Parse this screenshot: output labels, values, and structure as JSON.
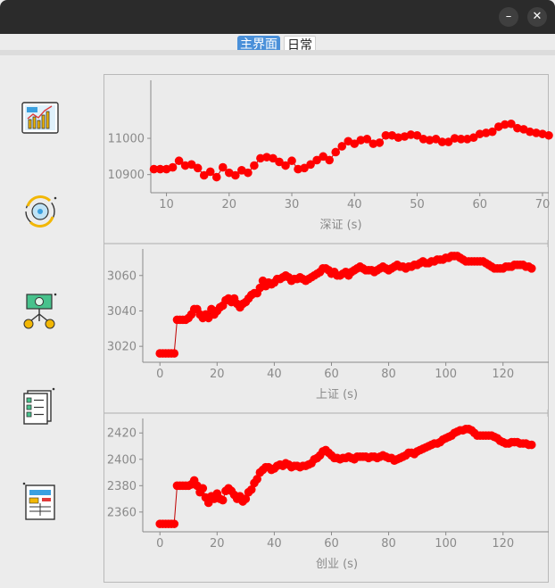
{
  "window": {
    "controls": [
      {
        "name": "minimize-button",
        "glyph": "–"
      },
      {
        "name": "close-button",
        "glyph": "✕"
      }
    ]
  },
  "tabs": [
    {
      "label": "主界面",
      "selected": true
    },
    {
      "label": "日常",
      "selected": false
    }
  ],
  "sidebar": {
    "items": [
      {
        "icon": "stock-chart-icon"
      },
      {
        "icon": "currency-exchange-icon"
      },
      {
        "icon": "money-plant-icon"
      },
      {
        "icon": "checklist-icon"
      },
      {
        "icon": "report-document-icon"
      }
    ]
  },
  "colors": {
    "marker": "#ff0000",
    "line": "#c00000",
    "axis": "#8a8a8a"
  },
  "chart_data": [
    {
      "type": "scatter",
      "xlabel": "深证 (s)",
      "xlim": [
        7.5,
        71
      ],
      "ylim": [
        10850,
        11160
      ],
      "xticks": [
        10,
        20,
        30,
        40,
        50,
        60,
        70
      ],
      "yticks": [
        10900,
        11000
      ],
      "x": [
        8,
        9,
        10,
        11,
        12,
        13,
        14,
        15,
        16,
        17,
        18,
        19,
        20,
        21,
        22,
        23,
        24,
        25,
        26,
        27,
        28,
        29,
        30,
        31,
        32,
        33,
        34,
        35,
        36,
        37,
        38,
        39,
        40,
        41,
        42,
        43,
        44,
        45,
        46,
        47,
        48,
        49,
        50,
        51,
        52,
        53,
        54,
        55,
        56,
        57,
        58,
        59,
        60,
        61,
        62,
        63,
        64,
        65,
        66,
        67,
        68,
        69,
        70,
        71
      ],
      "y": [
        10915,
        10915,
        10915,
        10920,
        10938,
        10925,
        10928,
        10918,
        10898,
        10908,
        10893,
        10920,
        10905,
        10898,
        10912,
        10905,
        10925,
        10945,
        10948,
        10945,
        10935,
        10925,
        10938,
        10915,
        10918,
        10928,
        10940,
        10950,
        10940,
        10962,
        10978,
        10992,
        10985,
        10995,
        10998,
        10985,
        10988,
        11008,
        11008,
        11002,
        11005,
        11010,
        11008,
        10998,
        10995,
        10998,
        10990,
        10990,
        11000,
        10998,
        10998,
        11002,
        11012,
        11015,
        11018,
        11032,
        11038,
        11040,
        11028,
        11025,
        11018,
        11015,
        11012,
        11008
      ]
    },
    {
      "type": "scatter",
      "xlabel": "上证 (s)",
      "xlim": [
        -6,
        136
      ],
      "ylim": [
        3011,
        3075
      ],
      "xticks": [
        0,
        20,
        40,
        60,
        80,
        100,
        120
      ],
      "yticks": [
        3020,
        3040,
        3060
      ],
      "x": [
        0,
        1,
        2,
        3,
        4,
        5,
        6,
        7,
        8,
        9,
        10,
        11,
        12,
        13,
        14,
        15,
        16,
        17,
        18,
        19,
        20,
        21,
        22,
        23,
        24,
        25,
        26,
        27,
        28,
        29,
        30,
        31,
        32,
        33,
        34,
        35,
        36,
        37,
        38,
        39,
        40,
        41,
        42,
        43,
        44,
        45,
        46,
        47,
        48,
        49,
        50,
        51,
        52,
        53,
        54,
        55,
        56,
        57,
        58,
        59,
        60,
        61,
        62,
        63,
        64,
        65,
        66,
        67,
        68,
        69,
        70,
        71,
        72,
        73,
        74,
        75,
        76,
        77,
        78,
        79,
        80,
        81,
        82,
        83,
        84,
        85,
        86,
        87,
        88,
        89,
        90,
        91,
        92,
        93,
        94,
        95,
        96,
        97,
        98,
        99,
        100,
        101,
        102,
        103,
        104,
        105,
        106,
        107,
        108,
        109,
        110,
        111,
        112,
        113,
        114,
        115,
        116,
        117,
        118,
        119,
        120,
        121,
        122,
        123,
        124,
        125,
        126,
        127,
        128,
        129,
        130
      ],
      "y": [
        3016,
        3016,
        3016,
        3016,
        3016,
        3016,
        3035,
        3035,
        3035,
        3035,
        3036,
        3038,
        3041,
        3041,
        3038,
        3036,
        3038,
        3036,
        3041,
        3038,
        3040,
        3042,
        3043,
        3046,
        3047,
        3045,
        3047,
        3044,
        3042,
        3044,
        3045,
        3047,
        3049,
        3050,
        3050,
        3053,
        3057,
        3054,
        3056,
        3055,
        3056,
        3058,
        3058,
        3059,
        3060,
        3059,
        3057,
        3058,
        3058,
        3059,
        3058,
        3057,
        3058,
        3059,
        3060,
        3061,
        3062,
        3064,
        3064,
        3063,
        3061,
        3062,
        3060,
        3060,
        3061,
        3062,
        3060,
        3062,
        3063,
        3064,
        3065,
        3064,
        3063,
        3063,
        3063,
        3062,
        3063,
        3064,
        3065,
        3064,
        3063,
        3064,
        3065,
        3066,
        3065,
        3065,
        3064,
        3065,
        3065,
        3066,
        3066,
        3067,
        3068,
        3067,
        3067,
        3068,
        3068,
        3069,
        3069,
        3069,
        3070,
        3070,
        3071,
        3071,
        3071,
        3070,
        3069,
        3068,
        3068,
        3068,
        3068,
        3068,
        3068,
        3068,
        3067,
        3066,
        3065,
        3064,
        3064,
        3064,
        3064,
        3065,
        3065,
        3065,
        3066,
        3066,
        3066,
        3066,
        3065,
        3065,
        3064
      ]
    },
    {
      "type": "scatter",
      "xlabel": "创业 (s)",
      "xlim": [
        -6,
        136
      ],
      "ylim": [
        2345,
        2431
      ],
      "xticks": [
        0,
        20,
        40,
        60,
        80,
        100,
        120
      ],
      "yticks": [
        2360,
        2380,
        2400,
        2420
      ],
      "x": [
        0,
        1,
        2,
        3,
        4,
        5,
        6,
        7,
        8,
        9,
        10,
        11,
        12,
        13,
        14,
        15,
        16,
        17,
        18,
        19,
        20,
        21,
        22,
        23,
        24,
        25,
        26,
        27,
        28,
        29,
        30,
        31,
        32,
        33,
        34,
        35,
        36,
        37,
        38,
        39,
        40,
        41,
        42,
        43,
        44,
        45,
        46,
        47,
        48,
        49,
        50,
        51,
        52,
        53,
        54,
        55,
        56,
        57,
        58,
        59,
        60,
        61,
        62,
        63,
        64,
        65,
        66,
        67,
        68,
        69,
        70,
        71,
        72,
        73,
        74,
        75,
        76,
        77,
        78,
        79,
        80,
        81,
        82,
        83,
        84,
        85,
        86,
        87,
        88,
        89,
        90,
        91,
        92,
        93,
        94,
        95,
        96,
        97,
        98,
        99,
        100,
        101,
        102,
        103,
        104,
        105,
        106,
        107,
        108,
        109,
        110,
        111,
        112,
        113,
        114,
        115,
        116,
        117,
        118,
        119,
        120,
        121,
        122,
        123,
        124,
        125,
        126,
        127,
        128,
        129,
        130
      ],
      "y": [
        2351,
        2351,
        2351,
        2351,
        2351,
        2351,
        2380,
        2380,
        2380,
        2380,
        2380,
        2381,
        2384,
        2380,
        2375,
        2378,
        2371,
        2367,
        2372,
        2370,
        2374,
        2370,
        2369,
        2376,
        2378,
        2376,
        2373,
        2370,
        2372,
        2368,
        2370,
        2375,
        2377,
        2382,
        2385,
        2390,
        2392,
        2394,
        2394,
        2392,
        2393,
        2395,
        2396,
        2395,
        2397,
        2396,
        2394,
        2395,
        2395,
        2394,
        2395,
        2395,
        2396,
        2397,
        2400,
        2401,
        2403,
        2406,
        2407,
        2405,
        2403,
        2401,
        2401,
        2400,
        2401,
        2401,
        2402,
        2401,
        2400,
        2402,
        2402,
        2402,
        2402,
        2401,
        2402,
        2402,
        2401,
        2402,
        2403,
        2402,
        2401,
        2401,
        2399,
        2400,
        2401,
        2402,
        2403,
        2405,
        2405,
        2404,
        2406,
        2407,
        2408,
        2409,
        2410,
        2411,
        2412,
        2412,
        2413,
        2415,
        2416,
        2417,
        2418,
        2420,
        2421,
        2422,
        2422,
        2423,
        2423,
        2422,
        2420,
        2418,
        2418,
        2418,
        2418,
        2418,
        2418,
        2417,
        2416,
        2414,
        2413,
        2412,
        2412,
        2413,
        2413,
        2413,
        2412,
        2412,
        2412,
        2411,
        2411
      ]
    }
  ]
}
